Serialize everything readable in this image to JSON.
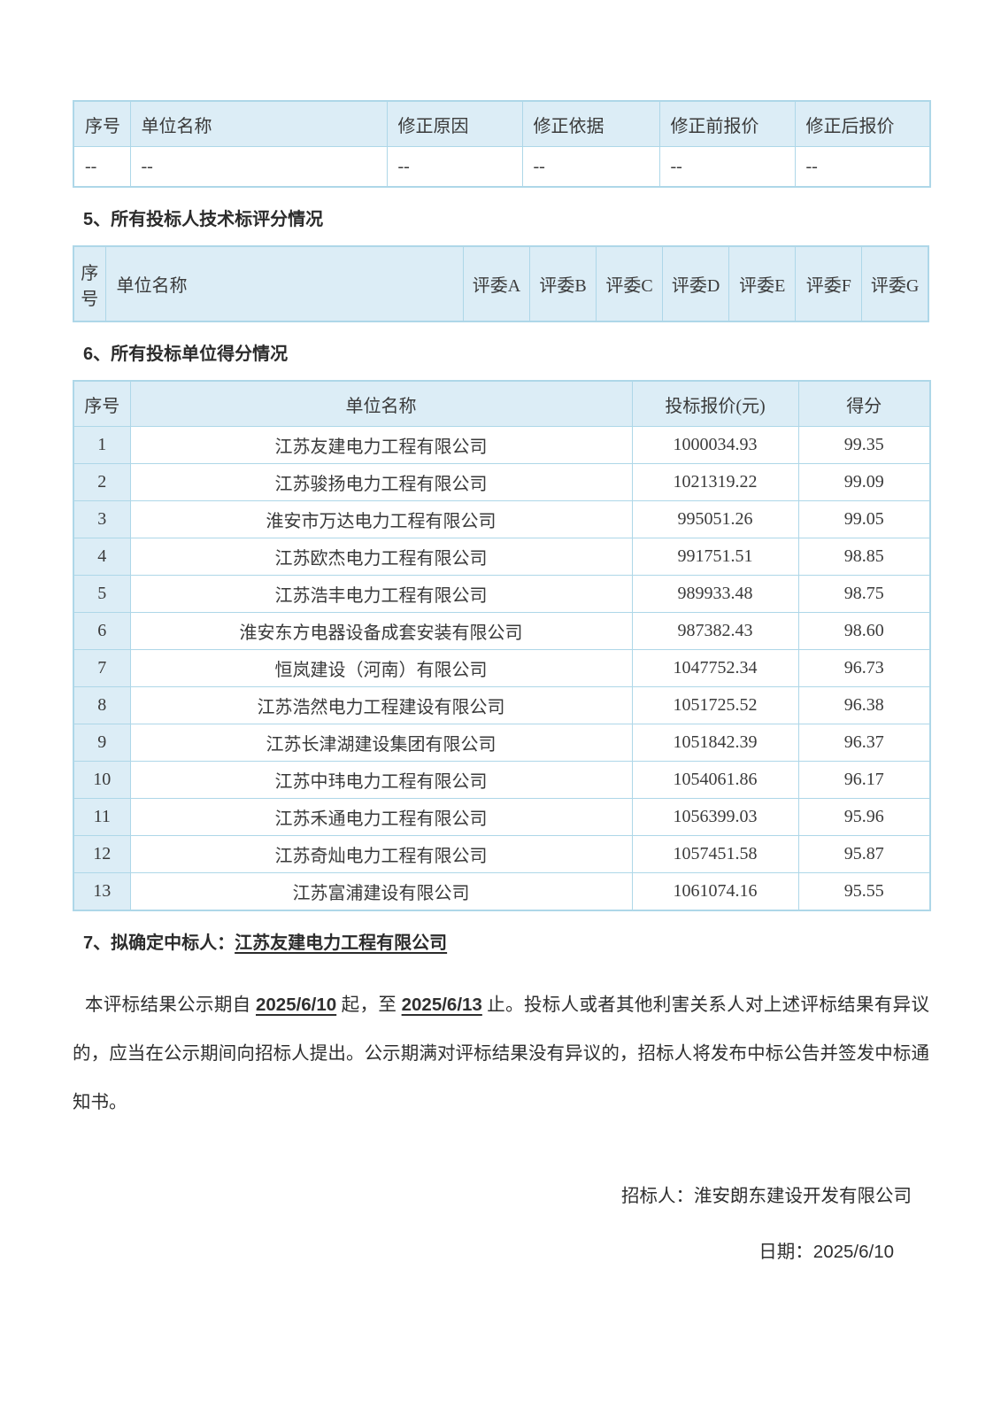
{
  "colors": {
    "header_fill": "#dcedf6",
    "table_border": "#aed7e8",
    "text": "#3a3a3a"
  },
  "correction_table": {
    "headers": [
      "序号",
      "单位名称",
      "修正原因",
      "修正依据",
      "修正前报价",
      "修正后报价"
    ],
    "row": [
      "--",
      "--",
      "--",
      "--",
      "--",
      "--"
    ]
  },
  "section5": {
    "title": "5、所有投标人技术标评分情况"
  },
  "technical_table": {
    "seq_header": "序号",
    "name_header": "单位名称",
    "judges": [
      "评委A",
      "评委B",
      "评委C",
      "评委D",
      "评委E",
      "评委F",
      "评委G"
    ]
  },
  "section6": {
    "title": "6、所有投标单位得分情况"
  },
  "scores_table": {
    "headers": [
      "序号",
      "单位名称",
      "投标报价(元)",
      "得分"
    ],
    "rows": [
      [
        "1",
        "江苏友建电力工程有限公司",
        "1000034.93",
        "99.35"
      ],
      [
        "2",
        "江苏骏扬电力工程有限公司",
        "1021319.22",
        "99.09"
      ],
      [
        "3",
        "淮安市万达电力工程有限公司",
        "995051.26",
        "99.05"
      ],
      [
        "4",
        "江苏欧杰电力工程有限公司",
        "991751.51",
        "98.85"
      ],
      [
        "5",
        "江苏浩丰电力工程有限公司",
        "989933.48",
        "98.75"
      ],
      [
        "6",
        "淮安东方电器设备成套安装有限公司",
        "987382.43",
        "98.60"
      ],
      [
        "7",
        "恒岚建设（河南）有限公司",
        "1047752.34",
        "96.73"
      ],
      [
        "8",
        "江苏浩然电力工程建设有限公司",
        "1051725.52",
        "96.38"
      ],
      [
        "9",
        "江苏长津湖建设集团有限公司",
        "1051842.39",
        "96.37"
      ],
      [
        "10",
        "江苏中玮电力工程有限公司",
        "1054061.86",
        "96.17"
      ],
      [
        "11",
        "江苏禾通电力工程有限公司",
        "1056399.03",
        "95.96"
      ],
      [
        "12",
        "江苏奇灿电力工程有限公司",
        "1057451.58",
        "95.87"
      ],
      [
        "13",
        "江苏富浦建设有限公司",
        "1061074.16",
        "95.55"
      ]
    ]
  },
  "section7": {
    "prefix": "7、拟确定中标人：",
    "winner": "江苏友建电力工程有限公司"
  },
  "notice": {
    "lead": "本评标结果公示期自 ",
    "date_start": "2025/6/10",
    "mid": " 起，至 ",
    "date_end": "2025/6/13",
    "tail": " 止。投标人或者其他利害关系人对上述评标结果有异议的，应当在公示期间向招标人提出。公示期满对评标结果没有异议的，招标人将发布中标公告并签发中标通知书。"
  },
  "footer": {
    "tenderer": "招标人：淮安朗东建设开发有限公司",
    "date_prefix": "日期：",
    "date_value": "2025/6/10"
  }
}
